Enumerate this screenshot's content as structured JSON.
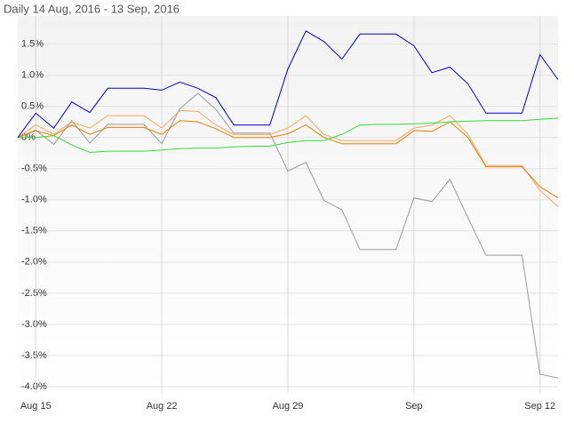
{
  "chart_data": {
    "type": "line",
    "title": "Daily 14 Aug, 2016 - 13 Sep, 2016",
    "categories": [
      null,
      "Aug 15",
      null,
      null,
      null,
      null,
      null,
      null,
      "Aug 22",
      null,
      null,
      null,
      null,
      null,
      null,
      "Aug 29",
      null,
      null,
      null,
      null,
      null,
      null,
      "Sep",
      null,
      null,
      null,
      null,
      null,
      null,
      "Sep 12",
      null
    ],
    "series": [
      {
        "color": "#999999",
        "values": [
          0,
          0.12,
          -0.11,
          0.27,
          -0.09,
          0.21,
          0.21,
          0.21,
          -0.1,
          0.46,
          0.71,
          0.45,
          0.07,
          0.07,
          0.07,
          -0.54,
          -0.4,
          -1.01,
          -1.16,
          -1.8,
          -1.8,
          -1.8,
          -0.97,
          -1.03,
          -0.67,
          -1.29,
          -1.89,
          -1.89,
          -1.89,
          -3.8,
          -3.86
        ]
      },
      {
        "color": "#f5a45d",
        "values": [
          0,
          0.2,
          0.05,
          0.25,
          0.15,
          0.35,
          0.35,
          0.35,
          0.15,
          0.43,
          0.42,
          0.2,
          0.05,
          0.05,
          0.05,
          0.15,
          0.35,
          0.05,
          -0.05,
          -0.05,
          -0.05,
          -0.05,
          0.15,
          0.2,
          0.35,
          0.05,
          -0.45,
          -0.45,
          -0.45,
          -0.85,
          -1.11
        ]
      },
      {
        "color": "#e67e00",
        "values": [
          0,
          0.11,
          0.03,
          0.2,
          0.05,
          0.16,
          0.16,
          0.16,
          0.05,
          0.27,
          0.25,
          0.14,
          0,
          0,
          0,
          0.06,
          0.2,
          0,
          -0.1,
          -0.1,
          -0.1,
          -0.1,
          0.11,
          0.1,
          0.25,
          0,
          -0.47,
          -0.47,
          -0.47,
          -0.79,
          -0.97
        ]
      },
      {
        "color": "#33dd33",
        "values": [
          0,
          0,
          0.03,
          -0.12,
          -0.24,
          -0.22,
          -0.22,
          -0.22,
          -0.2,
          -0.18,
          -0.17,
          -0.17,
          -0.15,
          -0.14,
          -0.14,
          -0.08,
          -0.05,
          -0.05,
          0.05,
          0.2,
          0.21,
          0.21,
          0.22,
          0.23,
          0.25,
          0.26,
          0.27,
          0.27,
          0.27,
          0.29,
          0.31
        ]
      },
      {
        "color": "#0000cc",
        "values": [
          0,
          0.39,
          0.15,
          0.57,
          0.4,
          0.79,
          0.79,
          0.79,
          0.76,
          0.89,
          0.79,
          0.64,
          0.2,
          0.2,
          0.2,
          1.1,
          1.71,
          1.54,
          1.26,
          1.66,
          1.66,
          1.66,
          1.47,
          1.04,
          1.13,
          0.86,
          0.39,
          0.39,
          0.39,
          1.33,
          0.93
        ]
      }
    ],
    "ylim": [
      -4.1,
      1.95
    ],
    "yticks": [
      {
        "value": 1.5,
        "label": "1.5%"
      },
      {
        "value": 1.0,
        "label": "1.0%"
      },
      {
        "value": 0.5,
        "label": "0.5%"
      },
      {
        "value": 0,
        "label": "0%"
      },
      {
        "value": -0.5,
        "label": "-0.5%"
      },
      {
        "value": -1.0,
        "label": "-1.0%"
      },
      {
        "value": -1.5,
        "label": "-1.5%"
      },
      {
        "value": -2.0,
        "label": "-2.0%"
      },
      {
        "value": -2.5,
        "label": "-2.5%"
      },
      {
        "value": -3.0,
        "label": "-3.0%"
      },
      {
        "value": -3.5,
        "label": "-3.5%"
      },
      {
        "value": -4.0,
        "label": "-4.0%"
      }
    ],
    "grid": true
  }
}
